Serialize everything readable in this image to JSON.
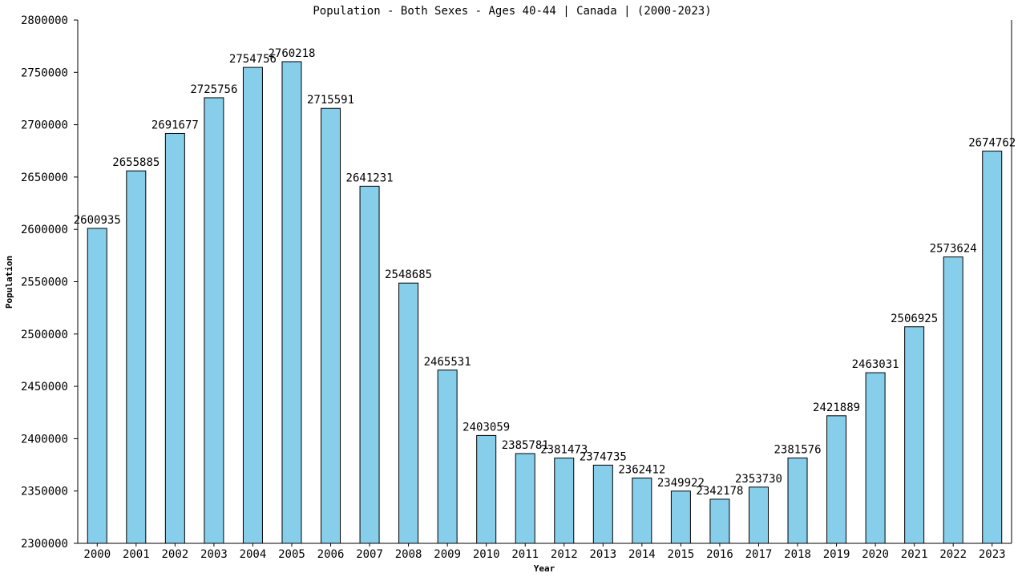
{
  "chart_data": {
    "type": "bar",
    "title": "Population - Both Sexes - Ages 40-44 | Canada |  (2000-2023)",
    "xlabel": "Year",
    "ylabel": "Population",
    "ylim": [
      2300000,
      2800000
    ],
    "yticks": [
      "2300000",
      "2350000",
      "2400000",
      "2450000",
      "2500000",
      "2550000",
      "2600000",
      "2650000",
      "2700000",
      "2750000",
      "2800000"
    ],
    "categories": [
      "2000",
      "2001",
      "2002",
      "2003",
      "2004",
      "2005",
      "2006",
      "2007",
      "2008",
      "2009",
      "2010",
      "2011",
      "2012",
      "2013",
      "2014",
      "2015",
      "2016",
      "2017",
      "2018",
      "2019",
      "2020",
      "2021",
      "2022",
      "2023"
    ],
    "values": [
      2600935,
      2655885,
      2691677,
      2725756,
      2754756,
      2760218,
      2715591,
      2641231,
      2548685,
      2465531,
      2403059,
      2385781,
      2381473,
      2374735,
      2362412,
      2349922,
      2342178,
      2353730,
      2381576,
      2421889,
      2463031,
      2506925,
      2573624,
      2674762
    ],
    "bar_color": "#87ceeb",
    "grid": false
  }
}
